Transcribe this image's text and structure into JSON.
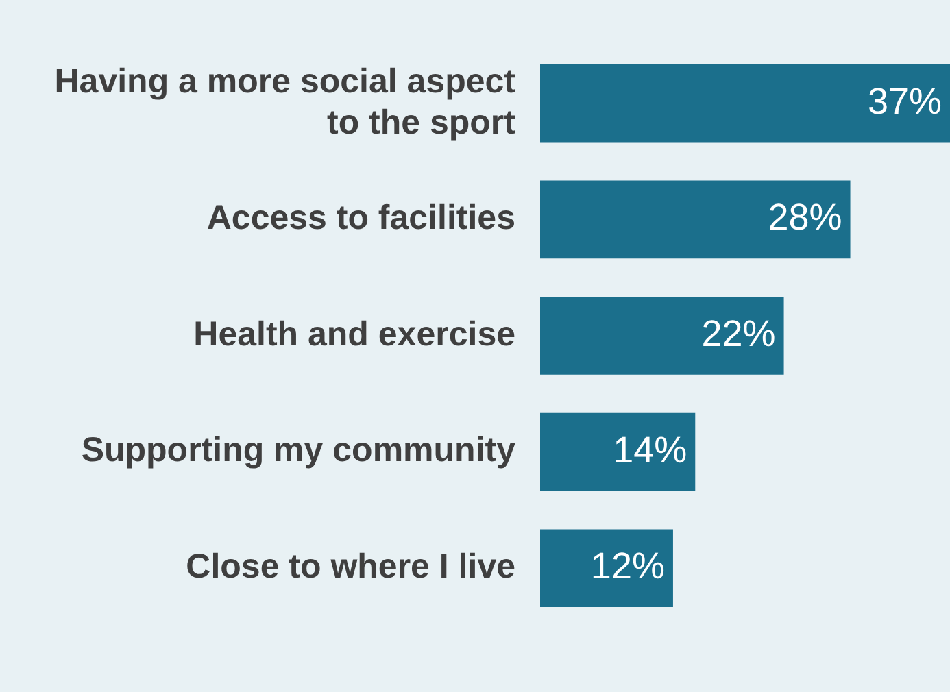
{
  "chart_data": {
    "type": "bar",
    "orientation": "horizontal",
    "categories": [
      "Having a more social aspect to the sport",
      "Access to facilities",
      "Health and exercise",
      "Supporting my community",
      "Close to where I live"
    ],
    "values": [
      37,
      28,
      22,
      14,
      12
    ],
    "value_labels": [
      "37%",
      "28%",
      "22%",
      "14%",
      "12%"
    ],
    "color": "#1b6f8c"
  }
}
